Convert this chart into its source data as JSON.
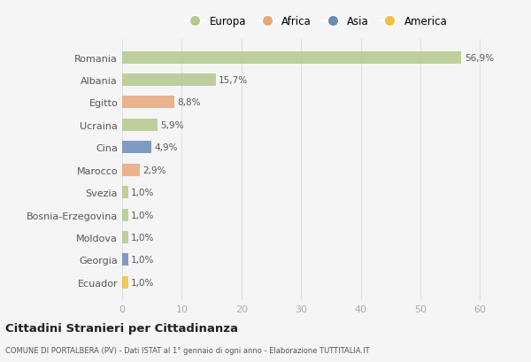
{
  "countries": [
    "Romania",
    "Albania",
    "Egitto",
    "Ucraina",
    "Cina",
    "Marocco",
    "Svezia",
    "Bosnia-Erzegovina",
    "Moldova",
    "Georgia",
    "Ecuador"
  ],
  "values": [
    56.9,
    15.7,
    8.8,
    5.9,
    4.9,
    2.9,
    1.0,
    1.0,
    1.0,
    1.0,
    1.0
  ],
  "labels": [
    "56,9%",
    "15,7%",
    "8,8%",
    "5,9%",
    "4,9%",
    "2,9%",
    "1,0%",
    "1,0%",
    "1,0%",
    "1,0%",
    "1,0%"
  ],
  "colors": [
    "#b5c98e",
    "#b5c98e",
    "#e8a87c",
    "#b5c98e",
    "#6b8cba",
    "#e8a87c",
    "#b5c98e",
    "#b5c98e",
    "#b5c98e",
    "#6b8cba",
    "#f0c040"
  ],
  "legend_labels": [
    "Europa",
    "Africa",
    "Asia",
    "America"
  ],
  "legend_colors": [
    "#b5c98e",
    "#e8a87c",
    "#6b8cba",
    "#f0c040"
  ],
  "title": "Cittadini Stranieri per Cittadinanza",
  "subtitle": "COMUNE DI PORTALBERA (PV) - Dati ISTAT al 1° gennaio di ogni anno - Elaborazione TUTTITALIA.IT",
  "xlim": [
    0,
    65
  ],
  "xticks": [
    0,
    10,
    20,
    30,
    40,
    50,
    60
  ],
  "background_color": "#f5f5f5",
  "plot_bg_color": "#f5f5f5",
  "bar_height": 0.55,
  "grid_color": "#e0e0e0",
  "label_text_color": "#555555",
  "ytick_color": "#555555",
  "xtick_color": "#aaaaaa"
}
